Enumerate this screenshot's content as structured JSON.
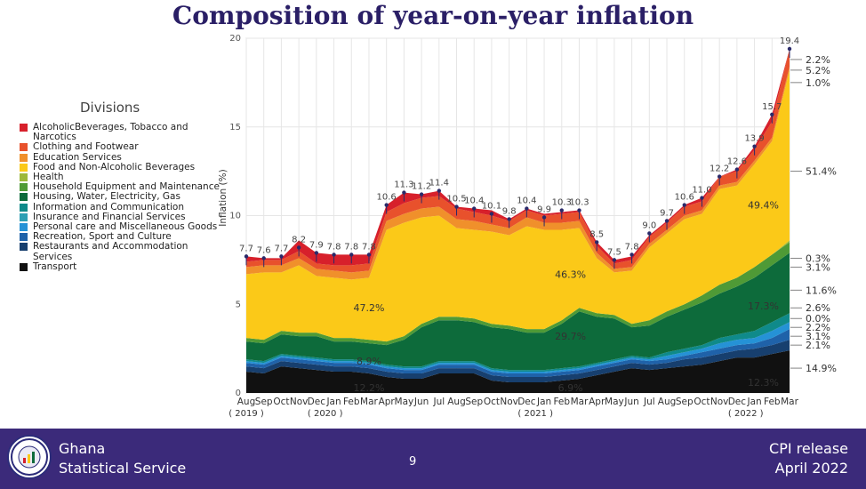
{
  "title": "Composition of year-on-year inflation",
  "legend": {
    "title": "Divisions",
    "items": [
      {
        "label": "AlcoholicBeverages, Tobacco and Narcotics",
        "color": "#d7202b"
      },
      {
        "label": "Clothing and Footwear",
        "color": "#e8512c"
      },
      {
        "label": "Education Services",
        "color": "#f0902b"
      },
      {
        "label": "Food and Non-Alcoholic Beverages",
        "color": "#fbc918"
      },
      {
        "label": "Health",
        "color": "#9db83a"
      },
      {
        "label": "Household Equipment and Maintenance",
        "color": "#4f9a36"
      },
      {
        "label": "Housing, Water, Electricity, Gas",
        "color": "#0d6b3b"
      },
      {
        "label": "Information and Communication",
        "color": "#0f8a8a"
      },
      {
        "label": "Insurance and Financial Services",
        "color": "#2c9fb4"
      },
      {
        "label": "Personal care and Miscellaneous Goods",
        "color": "#2592d6"
      },
      {
        "label": "Recreation, Sport and Culture",
        "color": "#1f62a9"
      },
      {
        "label": "Restaurants and Accommodation Services",
        "color": "#173f6e"
      },
      {
        "label": "Transport",
        "color": "#111111"
      }
    ]
  },
  "chart_data": {
    "type": "area",
    "stacked": true,
    "ylabel": "Inflation (%)",
    "ylim": [
      0,
      20
    ],
    "yticks": [
      0,
      5,
      10,
      15,
      20
    ],
    "x": [
      "Aug",
      "Sep",
      "Oct",
      "Nov",
      "Dec",
      "Jan",
      "Feb",
      "Mar",
      "Apr",
      "May",
      "Jun",
      "Jul",
      "Aug",
      "Sep",
      "Oct",
      "Nov",
      "Dec",
      "Jan",
      "Feb",
      "Mar",
      "Apr",
      "May",
      "Jun",
      "Jul",
      "Aug",
      "Sep",
      "Oct",
      "Nov",
      "Dec",
      "Jan",
      "Feb",
      "Mar"
    ],
    "year_labels": [
      {
        "label": "( 2019 )",
        "at": 0
      },
      {
        "label": "( 2020 )",
        "at": 4.5
      },
      {
        "label": "( 2021 )",
        "at": 16.5
      },
      {
        "label": "( 2022 )",
        "at": 28.5
      }
    ],
    "totals": [
      7.7,
      7.6,
      7.7,
      8.2,
      7.9,
      7.8,
      7.8,
      7.8,
      10.6,
      11.3,
      11.2,
      11.4,
      10.5,
      10.4,
      10.1,
      9.8,
      10.4,
      9.9,
      10.3,
      10.3,
      8.5,
      7.5,
      7.8,
      9.0,
      9.7,
      10.6,
      11.0,
      12.2,
      12.6,
      13.9,
      15.7,
      19.4
    ],
    "total_labels": [
      "7.7",
      "7.6",
      "7.7",
      "8.2",
      "7.9",
      "7.8",
      "7.8",
      "7.8",
      "10.6",
      "11.3",
      "11.2",
      "11.4",
      "10.5",
      "10.4",
      "10.1",
      "9.8",
      "10.4",
      "9.9",
      "10.3",
      "10.3",
      "8.5",
      "7.5",
      "7.8",
      "9.0",
      "9.7",
      "10.6",
      "11.0",
      "12.2",
      "12.6",
      "13.9",
      "15.7",
      "19.4"
    ],
    "series": [
      {
        "name": "Transport",
        "color": "#111111",
        "values": [
          1.2,
          1.1,
          1.5,
          1.4,
          1.3,
          1.2,
          1.2,
          1.1,
          0.9,
          0.8,
          0.8,
          1.1,
          1.1,
          1.1,
          0.7,
          0.6,
          0.6,
          0.6,
          0.7,
          0.8,
          1.0,
          1.2,
          1.4,
          1.3,
          1.4,
          1.5,
          1.6,
          1.8,
          2.0,
          2.0,
          2.2,
          2.4
        ]
      },
      {
        "name": "Restaurants and Accommodation Services",
        "color": "#173f6e",
        "values": [
          0.3,
          0.3,
          0.3,
          0.3,
          0.3,
          0.3,
          0.3,
          0.3,
          0.3,
          0.3,
          0.3,
          0.3,
          0.3,
          0.3,
          0.3,
          0.3,
          0.3,
          0.3,
          0.3,
          0.3,
          0.3,
          0.3,
          0.3,
          0.3,
          0.3,
          0.4,
          0.4,
          0.4,
          0.4,
          0.5,
          0.5,
          0.6
        ]
      },
      {
        "name": "Recreation, Sport and Culture",
        "color": "#1f62a9",
        "values": [
          0.2,
          0.2,
          0.2,
          0.2,
          0.2,
          0.2,
          0.2,
          0.2,
          0.2,
          0.2,
          0.2,
          0.2,
          0.2,
          0.2,
          0.2,
          0.2,
          0.2,
          0.2,
          0.2,
          0.2,
          0.2,
          0.2,
          0.2,
          0.2,
          0.2,
          0.2,
          0.3,
          0.3,
          0.3,
          0.3,
          0.4,
          0.6
        ]
      },
      {
        "name": "Personal care and Miscellaneous Goods",
        "color": "#2592d6",
        "values": [
          0.1,
          0.1,
          0.1,
          0.1,
          0.1,
          0.1,
          0.1,
          0.1,
          0.1,
          0.1,
          0.1,
          0.1,
          0.1,
          0.1,
          0.1,
          0.1,
          0.1,
          0.1,
          0.1,
          0.1,
          0.1,
          0.1,
          0.1,
          0.1,
          0.2,
          0.2,
          0.2,
          0.3,
          0.3,
          0.3,
          0.4,
          0.4
        ]
      },
      {
        "name": "Insurance and Financial Services",
        "color": "#2c9fb4",
        "values": [
          0,
          0,
          0,
          0,
          0,
          0,
          0,
          0,
          0,
          0,
          0,
          0,
          0,
          0,
          0,
          0,
          0,
          0,
          0,
          0,
          0,
          0,
          0,
          0,
          0,
          0,
          0,
          0,
          0,
          0,
          0,
          0
        ]
      },
      {
        "name": "Information and Communication",
        "color": "#0f8a8a",
        "values": [
          0.1,
          0.1,
          0.1,
          0.1,
          0.1,
          0.1,
          0.1,
          0.1,
          0.1,
          0.1,
          0.1,
          0.1,
          0.1,
          0.1,
          0.1,
          0.1,
          0.1,
          0.1,
          0.1,
          0.1,
          0.1,
          0.1,
          0.1,
          0.1,
          0.2,
          0.2,
          0.2,
          0.3,
          0.3,
          0.4,
          0.5,
          0.5
        ]
      },
      {
        "name": "Housing, Water, Electricity, Gas",
        "color": "#0d6b3b",
        "values": [
          1.0,
          1.0,
          1.1,
          1.1,
          1.2,
          1.0,
          1.0,
          1.0,
          1.1,
          1.5,
          2.2,
          2.3,
          2.3,
          2.2,
          2.3,
          2.3,
          2.1,
          2.1,
          2.5,
          3.1,
          2.6,
          2.3,
          1.6,
          1.8,
          2.0,
          2.2,
          2.4,
          2.5,
          2.7,
          3.0,
          3.2,
          3.4
        ]
      },
      {
        "name": "Household Equipment and Maintenance",
        "color": "#4f9a36",
        "values": [
          0.2,
          0.2,
          0.2,
          0.2,
          0.2,
          0.2,
          0.2,
          0.2,
          0.2,
          0.2,
          0.2,
          0.2,
          0.2,
          0.2,
          0.2,
          0.2,
          0.2,
          0.2,
          0.2,
          0.2,
          0.2,
          0.2,
          0.2,
          0.3,
          0.3,
          0.3,
          0.4,
          0.5,
          0.5,
          0.6,
          0.6,
          0.6
        ]
      },
      {
        "name": "Health",
        "color": "#9db83a",
        "values": [
          0,
          0,
          0,
          0,
          0,
          0,
          0,
          0,
          0,
          0,
          0,
          0,
          0,
          0,
          0,
          0,
          0,
          0,
          0,
          0,
          0,
          0,
          0,
          0,
          0,
          0,
          0,
          0,
          0,
          0,
          0,
          0.1
        ]
      },
      {
        "name": "Food and Non-Alcoholic Beverages",
        "color": "#fbc918",
        "values": [
          3.6,
          3.8,
          3.3,
          3.8,
          3.2,
          3.4,
          3.3,
          3.5,
          6.3,
          6.4,
          6.0,
          5.7,
          5.0,
          5.0,
          5.2,
          5.1,
          5.8,
          5.6,
          5.1,
          4.5,
          3.1,
          2.4,
          3.0,
          4.1,
          4.4,
          4.8,
          4.6,
          5.4,
          5.2,
          5.8,
          6.4,
          9.6
        ]
      },
      {
        "name": "Education Services",
        "color": "#f0902b",
        "values": [
          0.4,
          0.4,
          0.4,
          0.4,
          0.4,
          0.4,
          0.4,
          0.4,
          0.5,
          0.5,
          0.5,
          0.5,
          0.5,
          0.5,
          0.4,
          0.4,
          0.5,
          0.4,
          0.4,
          0.4,
          0.3,
          0.2,
          0.2,
          0.2,
          0.2,
          0.2,
          0.2,
          0.2,
          0.2,
          0.2,
          0.2,
          0.2
        ]
      },
      {
        "name": "Clothing and Footwear",
        "color": "#e8512c",
        "values": [
          0.3,
          0.3,
          0.3,
          0.4,
          0.3,
          0.3,
          0.4,
          0.4,
          0.5,
          0.6,
          0.6,
          0.6,
          0.6,
          0.5,
          0.5,
          0.4,
          0.4,
          0.4,
          0.5,
          0.5,
          0.4,
          0.3,
          0.4,
          0.4,
          0.4,
          0.5,
          0.5,
          0.5,
          0.6,
          0.6,
          0.9,
          1.0
        ]
      },
      {
        "name": "AlcoholicBeverages, Tobacco and Narcotics",
        "color": "#d7202b",
        "values": [
          0.3,
          0.1,
          0.1,
          0.6,
          0.6,
          0.6,
          0.6,
          0.5,
          0.4,
          0.6,
          0.2,
          0.3,
          0.1,
          0.2,
          0.3,
          0.1,
          0.1,
          0.1,
          0.1,
          0.1,
          0.2,
          0.2,
          0.2,
          0.1,
          0.1,
          0.1,
          0.2,
          0.0,
          0.1,
          0.2,
          0.4,
          0.0
        ]
      }
    ],
    "inner_annotations": [
      {
        "text": "47.2%",
        "x": 7,
        "y": 4.6
      },
      {
        "text": "8.9%",
        "x": 7,
        "y": 1.6
      },
      {
        "text": "12.2%",
        "x": 7,
        "y": 0.1
      },
      {
        "text": "46.3%",
        "x": 18.5,
        "y": 6.5
      },
      {
        "text": "29.7%",
        "x": 18.5,
        "y": 3.0
      },
      {
        "text": "6.9%",
        "x": 18.5,
        "y": 0.1
      },
      {
        "text": "49.4%",
        "x": 29.5,
        "y": 10.4
      },
      {
        "text": "17.3%",
        "x": 29.5,
        "y": 4.7
      },
      {
        "text": "12.3%",
        "x": 29.5,
        "y": 0.4
      }
    ],
    "right_annotations": [
      {
        "text": "2.2%",
        "y": 18.8
      },
      {
        "text": "5.2%",
        "y": 18.2
      },
      {
        "text": "1.0%",
        "y": 17.5
      },
      {
        "text": "51.4%",
        "y": 12.5
      },
      {
        "text": "0.3%",
        "y": 7.6
      },
      {
        "text": "3.1%",
        "y": 7.1
      },
      {
        "text": "11.6%",
        "y": 5.8
      },
      {
        "text": "2.6%",
        "y": 4.8
      },
      {
        "text": "0.0%",
        "y": 4.2
      },
      {
        "text": "2.2%",
        "y": 3.7
      },
      {
        "text": "3.1%",
        "y": 3.2
      },
      {
        "text": "2.1%",
        "y": 2.7
      },
      {
        "text": "14.9%",
        "y": 1.4
      }
    ]
  },
  "footer": {
    "org_line1": "Ghana",
    "org_line2": "Statistical Service",
    "page_number": "9",
    "release_line1": "CPI release",
    "release_line2": "April  2022",
    "logo_text": "GHANA STATISTICAL SERVICE"
  }
}
